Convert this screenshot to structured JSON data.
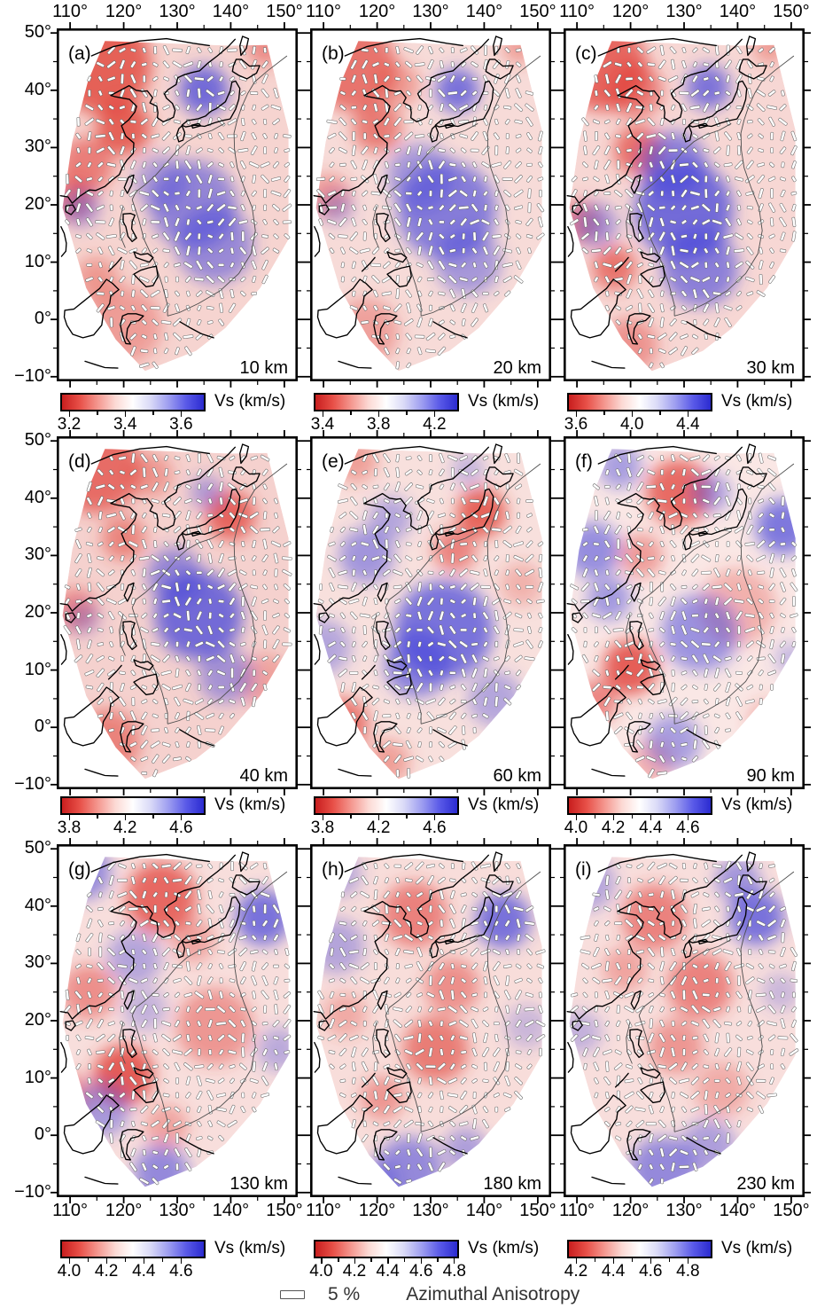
{
  "figure": {
    "lon_tick_labels": [
      "110°",
      "120°",
      "130°",
      "140°",
      "150°"
    ],
    "lon_tick_values": [
      110,
      120,
      130,
      140,
      150
    ],
    "lat_tick_labels": [
      "50°",
      "40°",
      "30°",
      "20°",
      "10°",
      "0°",
      "−10°"
    ],
    "lat_tick_values": [
      50,
      40,
      30,
      20,
      10,
      0,
      -10
    ],
    "colorbar_label": "Vs (km/s)",
    "legend": {
      "percent": "5 %",
      "label": "Azimuthal Anisotropy"
    },
    "colors": {
      "hot": "#e03b32",
      "cold": "#4545da",
      "land_outline": "#000000",
      "plate_boundary": "#4d4d4d",
      "bar_fill": "#ffffff",
      "gradient": [
        "#c81e1e",
        "#e85048",
        "#f4968e",
        "#fcd9d4",
        "#ffffff",
        "#d9d9f7",
        "#9e9ef0",
        "#5a5ae8",
        "#2b2bd0"
      ]
    },
    "panels": [
      {
        "id": "a",
        "letter": "(a)",
        "depth_label": "10 km",
        "colorbar_ticks": [
          "3.2",
          "3.4",
          "3.6"
        ],
        "base": "#f0b7b1",
        "hot": [
          [
            116,
            44.5,
            9,
            0.95
          ],
          [
            120,
            33.5,
            5,
            0.95
          ],
          [
            113,
            27,
            5,
            0.7
          ],
          [
            110.5,
            21,
            4,
            0.7
          ],
          [
            146.5,
            47.5,
            3.5,
            0.6
          ],
          [
            120,
            -1,
            7,
            0.45
          ],
          [
            115,
            7,
            4,
            0.5
          ]
        ],
        "cold": [
          [
            135,
            40,
            4.5,
            1
          ],
          [
            133,
            20,
            8,
            0.75
          ],
          [
            137,
            13,
            7,
            0.7
          ],
          [
            112,
            19.5,
            3.5,
            0.55
          ],
          [
            127,
            24,
            5,
            0.5
          ]
        ]
      },
      {
        "id": "b",
        "letter": "(b)",
        "depth_label": "20 km",
        "colorbar_ticks": [
          "3.4",
          "3.8",
          "4.2"
        ],
        "base": "#f2c3be",
        "hot": [
          [
            115.5,
            44,
            8,
            0.8
          ],
          [
            120,
            33.5,
            4.5,
            0.75
          ],
          [
            146.5,
            47.5,
            3,
            0.5
          ],
          [
            111,
            21.5,
            4,
            0.55
          ],
          [
            118,
            -2,
            6,
            0.45
          ],
          [
            124,
            41,
            4,
            0.5
          ]
        ],
        "cold": [
          [
            135,
            40,
            4,
            0.95
          ],
          [
            133,
            19,
            9,
            0.85
          ],
          [
            128,
            25,
            6,
            0.6
          ],
          [
            137,
            10,
            6,
            0.6
          ],
          [
            112.5,
            19.5,
            3,
            0.45
          ]
        ]
      },
      {
        "id": "c",
        "letter": "(c)",
        "depth_label": "30 km",
        "colorbar_ticks": [
          "3.6",
          "4.0",
          "4.4"
        ],
        "base": "#f1bdb8",
        "hot": [
          [
            115,
            44,
            8,
            0.9
          ],
          [
            121,
            40,
            5,
            0.7
          ],
          [
            121.5,
            29.5,
            4.5,
            0.85
          ],
          [
            110.5,
            17,
            4,
            0.65
          ],
          [
            117,
            9,
            4,
            0.8
          ],
          [
            120,
            -4.5,
            5,
            0.55
          ],
          [
            146,
            47.5,
            3,
            0.5
          ]
        ],
        "cold": [
          [
            134.5,
            40.5,
            4,
            0.9
          ],
          [
            130,
            19,
            9,
            1
          ],
          [
            128,
            27,
            6,
            0.8
          ],
          [
            133,
            9,
            7,
            0.8
          ],
          [
            113.5,
            16.5,
            4,
            0.6
          ]
        ]
      },
      {
        "id": "d",
        "letter": "(d)",
        "depth_label": "40 km",
        "colorbar_ticks": [
          "3.8",
          "4.2",
          "4.6"
        ],
        "base": "#efb3ae",
        "hot": [
          [
            115,
            45,
            8,
            0.85
          ],
          [
            140,
            37,
            4.5,
            0.9
          ],
          [
            120,
            33,
            4,
            0.65
          ],
          [
            111,
            20.5,
            4,
            0.6
          ],
          [
            117,
            -2.5,
            6,
            0.65
          ],
          [
            146.5,
            8,
            5,
            0.4
          ],
          [
            125,
            44,
            4,
            0.5
          ]
        ],
        "cold": [
          [
            134,
            19.5,
            8,
            1
          ],
          [
            129.5,
            26.5,
            5,
            0.75
          ],
          [
            135.5,
            41,
            3,
            0.55
          ],
          [
            139,
            9,
            5,
            0.6
          ],
          [
            112.5,
            19,
            3,
            0.4
          ]
        ]
      },
      {
        "id": "e",
        "letter": "(e)",
        "depth_label": "60 km",
        "colorbar_ticks": [
          "3.8",
          "4.2",
          "4.6"
        ],
        "base": "#f4cbc7",
        "hot": [
          [
            139.5,
            37.5,
            4.5,
            0.95
          ],
          [
            134.5,
            31,
            4,
            0.7
          ],
          [
            116,
            46.5,
            4,
            0.5
          ],
          [
            113.5,
            0.5,
            5,
            0.8
          ],
          [
            147,
            25,
            4,
            0.35
          ],
          [
            122,
            -6,
            4,
            0.5
          ]
        ],
        "cold": [
          [
            132.5,
            17,
            9,
            0.95
          ],
          [
            127.5,
            11,
            6,
            0.8
          ],
          [
            118,
            30,
            5,
            0.65
          ],
          [
            122.5,
            36.5,
            4,
            0.5
          ],
          [
            110,
            14,
            5,
            0.5
          ],
          [
            137,
            45,
            3,
            0.4
          ],
          [
            142,
            5,
            5,
            0.5
          ]
        ]
      },
      {
        "id": "f",
        "letter": "(f)",
        "depth_label": "90 km",
        "colorbar_ticks": [
          "4.0",
          "4.2",
          "4.4",
          "4.6"
        ],
        "base": "#f6d7d4",
        "hot": [
          [
            129,
            41,
            6,
            0.9
          ],
          [
            122,
            30,
            4,
            0.55
          ],
          [
            120,
            10.5,
            5,
            1
          ],
          [
            113.5,
            4.5,
            4,
            0.7
          ],
          [
            140,
            21,
            7,
            0.4
          ],
          [
            146,
            1,
            4,
            0.4
          ],
          [
            124,
            -6,
            4,
            0.4
          ]
        ],
        "cold": [
          [
            118,
            45.5,
            4,
            0.6
          ],
          [
            148.5,
            35,
            5,
            0.9
          ],
          [
            135,
            41,
            3.5,
            0.6
          ],
          [
            113,
            31,
            5,
            0.75
          ],
          [
            116,
            22.5,
            4,
            0.65
          ],
          [
            133,
            16.5,
            7,
            0.7
          ],
          [
            128,
            -2.5,
            5,
            0.6
          ],
          [
            150,
            12,
            3,
            0.4
          ]
        ]
      },
      {
        "id": "g",
        "letter": "(g)",
        "depth_label": "130 km",
        "colorbar_ticks": [
          "4.0",
          "4.2",
          "4.4",
          "4.6"
        ],
        "base": "#f3c8c4",
        "hot": [
          [
            127,
            41.5,
            6.5,
            0.9
          ],
          [
            120,
            10.5,
            5.5,
            1
          ],
          [
            113.5,
            25,
            5,
            0.6
          ],
          [
            137,
            19,
            7,
            0.55
          ],
          [
            128,
            1.5,
            4,
            0.45
          ],
          [
            110,
            7,
            4,
            0.6
          ],
          [
            133,
            34,
            4,
            0.45
          ]
        ],
        "cold": [
          [
            112.5,
            46,
            5,
            0.75
          ],
          [
            146,
            38,
            5,
            0.95
          ],
          [
            122,
            31,
            5,
            0.5
          ],
          [
            116,
            4.5,
            5,
            0.6
          ],
          [
            127,
            -6.5,
            5,
            0.75
          ],
          [
            149,
            15,
            4,
            0.45
          ],
          [
            124,
            22,
            4,
            0.4
          ]
        ]
      },
      {
        "id": "h",
        "letter": "(h)",
        "depth_label": "180 km",
        "colorbar_ticks": [
          "4.0",
          "4.2",
          "4.4",
          "4.6",
          "4.8"
        ],
        "base": "#f3c6c2",
        "hot": [
          [
            127,
            38.5,
            6,
            0.7
          ],
          [
            134,
            26,
            5,
            0.6
          ],
          [
            131,
            15,
            6,
            0.75
          ],
          [
            121,
            6.5,
            4,
            0.55
          ],
          [
            114,
            21,
            4,
            0.4
          ]
        ],
        "cold": [
          [
            143.5,
            37.5,
            5,
            0.95
          ],
          [
            112.5,
            33,
            5,
            0.5
          ],
          [
            126,
            -6,
            6,
            0.75
          ],
          [
            136.5,
            -2.5,
            4,
            0.55
          ],
          [
            148,
            19,
            4,
            0.35
          ],
          [
            113,
            45.5,
            4,
            0.45
          ],
          [
            120,
            -8,
            4,
            0.5
          ]
        ]
      },
      {
        "id": "i",
        "letter": "(i)",
        "depth_label": "230 km",
        "colorbar_ticks": [
          "4.2",
          "4.4",
          "4.6",
          "4.8"
        ],
        "base": "#f3c8c4",
        "hot": [
          [
            124.5,
            38,
            6,
            0.7
          ],
          [
            133,
            26,
            6,
            0.7
          ],
          [
            128.5,
            15.5,
            5,
            0.55
          ],
          [
            119,
            29,
            4,
            0.45
          ],
          [
            137,
            8,
            5,
            0.4
          ]
        ],
        "cold": [
          [
            143.5,
            38,
            5,
            0.95
          ],
          [
            140,
            44.5,
            4,
            0.65
          ],
          [
            126,
            -6,
            6,
            0.75
          ],
          [
            134.5,
            -2,
            5,
            0.55
          ],
          [
            112,
            44,
            5,
            0.5
          ],
          [
            110.5,
            18,
            4,
            0.4
          ],
          [
            148,
            25,
            3.5,
            0.35
          ]
        ]
      }
    ]
  }
}
